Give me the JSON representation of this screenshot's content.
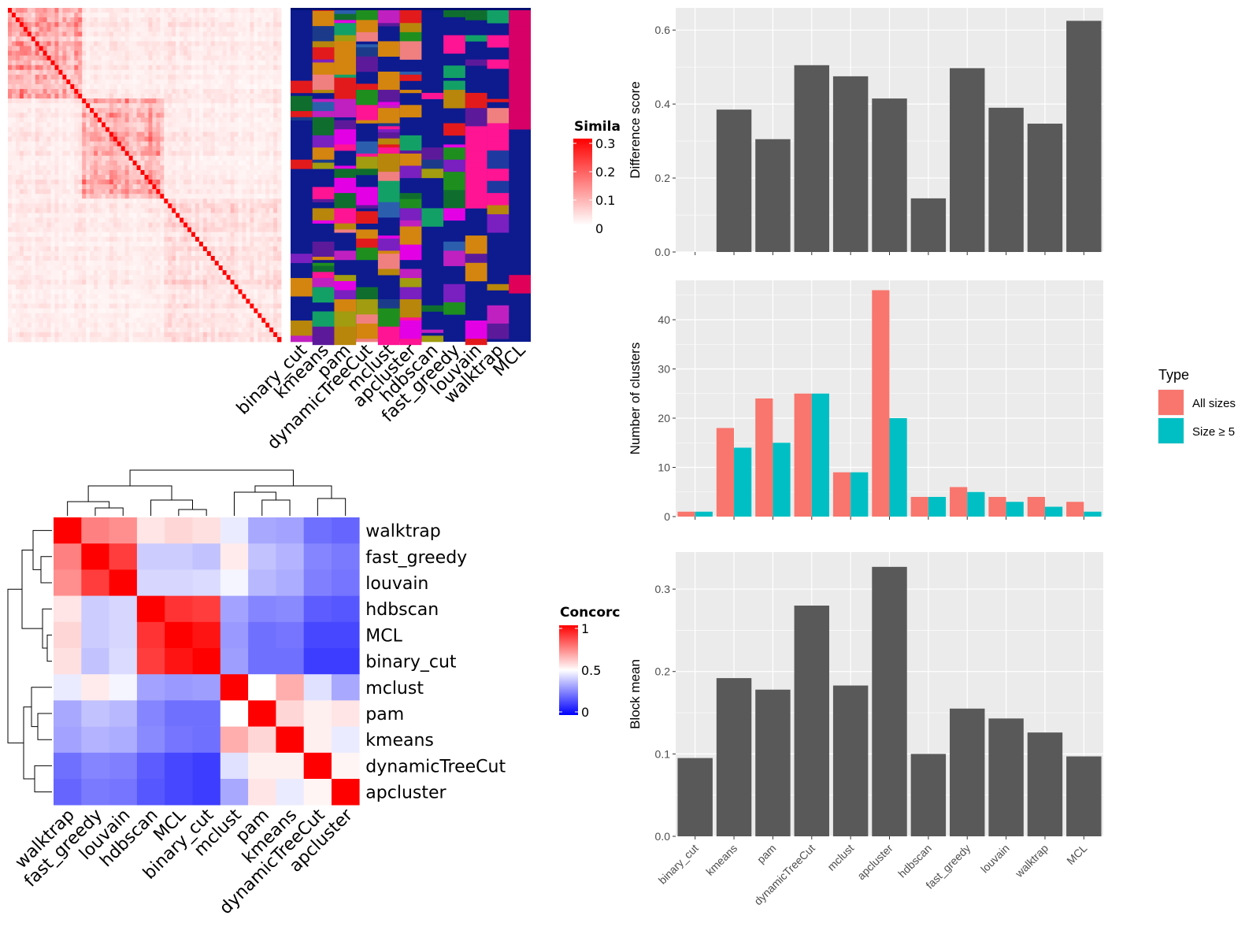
{
  "methods": [
    "binary_cut",
    "kmeans",
    "pam",
    "dynamicTreeCut",
    "mclust",
    "apcluster",
    "hdbscan",
    "fast_greedy",
    "louvain",
    "walktrap",
    "MCL"
  ],
  "colors": {
    "panel_bg": "#ebebeb",
    "grid": "#ffffff",
    "bar": "#595959",
    "all_sizes": "#f8766d",
    "size_ge5": "#00bfc4",
    "sim_high": "#ff0000",
    "sim_low": "#ffffff",
    "conc_high": "#ff0000",
    "conc_mid": "#ffffff",
    "conc_low": "#0000ff",
    "cluster_bg": "#0d1b8f"
  },
  "similarity_heatmap": {
    "legend_title": "Simila",
    "legend_ticks": [
      "0.3",
      "0.2",
      "0.1",
      "0"
    ],
    "column_labels": [
      "binary_cut",
      "kmeans",
      "pam",
      "dynamicTreeCut",
      "mclust",
      "apcluster",
      "hdbscan",
      "fast_greedy",
      "louvain",
      "walktrap",
      "MCL"
    ]
  },
  "concordance_heatmap": {
    "legend_title": "Concorc",
    "legend_ticks": [
      "1",
      "0.5",
      "0"
    ],
    "order": [
      "walktrap",
      "fast_greedy",
      "louvain",
      "hdbscan",
      "MCL",
      "binary_cut",
      "mclust",
      "pam",
      "kmeans",
      "dynamicTreeCut",
      "apcluster"
    ],
    "matrix": [
      [
        1.0,
        0.75,
        0.72,
        0.55,
        0.58,
        0.56,
        0.46,
        0.33,
        0.32,
        0.22,
        0.2
      ],
      [
        0.75,
        1.0,
        0.88,
        0.4,
        0.4,
        0.38,
        0.54,
        0.38,
        0.35,
        0.26,
        0.24
      ],
      [
        0.72,
        0.88,
        1.0,
        0.42,
        0.42,
        0.43,
        0.48,
        0.36,
        0.34,
        0.25,
        0.23
      ],
      [
        0.55,
        0.4,
        0.42,
        1.0,
        0.9,
        0.88,
        0.32,
        0.26,
        0.27,
        0.18,
        0.17
      ],
      [
        0.58,
        0.4,
        0.42,
        0.9,
        1.0,
        0.96,
        0.3,
        0.22,
        0.23,
        0.14,
        0.14
      ],
      [
        0.56,
        0.38,
        0.43,
        0.88,
        0.96,
        1.0,
        0.31,
        0.22,
        0.22,
        0.12,
        0.12
      ],
      [
        0.46,
        0.54,
        0.48,
        0.32,
        0.3,
        0.31,
        1.0,
        0.5,
        0.66,
        0.44,
        0.33
      ],
      [
        0.33,
        0.38,
        0.36,
        0.26,
        0.22,
        0.22,
        0.5,
        1.0,
        0.58,
        0.53,
        0.55
      ],
      [
        0.32,
        0.35,
        0.34,
        0.27,
        0.23,
        0.22,
        0.66,
        0.58,
        1.0,
        0.53,
        0.46
      ],
      [
        0.22,
        0.26,
        0.25,
        0.18,
        0.14,
        0.12,
        0.44,
        0.53,
        0.53,
        1.0,
        0.52
      ],
      [
        0.2,
        0.24,
        0.23,
        0.17,
        0.14,
        0.12,
        0.33,
        0.55,
        0.46,
        0.52,
        1.0
      ]
    ]
  },
  "chart_data": [
    {
      "type": "bar",
      "categories": [
        "binary_cut",
        "kmeans",
        "pam",
        "dynamicTreeCut",
        "mclust",
        "apcluster",
        "hdbscan",
        "fast_greedy",
        "louvain",
        "walktrap",
        "MCL"
      ],
      "values": [
        0,
        0.385,
        0.305,
        0.505,
        0.475,
        0.415,
        0.145,
        0.497,
        0.39,
        0.347,
        0.625
      ],
      "ylabel": "Difference score",
      "ylim": [
        0,
        0.66
      ],
      "yticks": [
        0.0,
        0.2,
        0.4,
        0.6
      ],
      "ytick_labels": [
        "0.0",
        "0.2",
        "0.4",
        "0.6"
      ]
    },
    {
      "type": "bar",
      "categories": [
        "binary_cut",
        "kmeans",
        "pam",
        "dynamicTreeCut",
        "mclust",
        "apcluster",
        "hdbscan",
        "fast_greedy",
        "louvain",
        "walktrap",
        "MCL"
      ],
      "series": [
        {
          "name": "All sizes",
          "values": [
            1,
            18,
            24,
            25,
            9,
            46,
            4,
            6,
            4,
            4,
            3
          ]
        },
        {
          "name": "Size ≥ 5",
          "values": [
            1,
            14,
            15,
            25,
            9,
            20,
            4,
            5,
            3,
            2,
            1
          ]
        }
      ],
      "ylabel": "Number of clusters",
      "legend_title": "Type",
      "legend_position": "right",
      "ylim": [
        0,
        48
      ],
      "yticks": [
        0,
        10,
        20,
        30,
        40
      ],
      "ytick_labels": [
        "0",
        "10",
        "20",
        "30",
        "40"
      ]
    },
    {
      "type": "bar",
      "categories": [
        "binary_cut",
        "kmeans",
        "pam",
        "dynamicTreeCut",
        "mclust",
        "apcluster",
        "hdbscan",
        "fast_greedy",
        "louvain",
        "walktrap",
        "MCL"
      ],
      "values": [
        0.095,
        0.192,
        0.178,
        0.28,
        0.183,
        0.327,
        0.1,
        0.155,
        0.143,
        0.126,
        0.097
      ],
      "ylabel": "Block mean",
      "ylim": [
        0,
        0.345
      ],
      "yticks": [
        0.0,
        0.1,
        0.2,
        0.3
      ],
      "ytick_labels": [
        "0.0",
        "0.1",
        "0.2",
        "0.3"
      ]
    }
  ]
}
